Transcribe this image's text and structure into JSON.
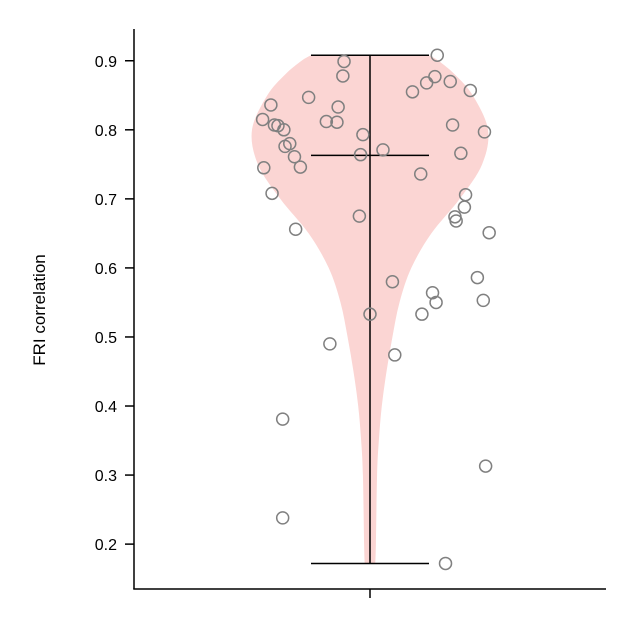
{
  "chart_data": {
    "type": "violin",
    "title": "",
    "xlabel": "",
    "ylabel": "FRI correlation",
    "ylim": [
      0.135,
      0.946
    ],
    "yticks": [
      0.2,
      0.3,
      0.4,
      0.5,
      0.6,
      0.7,
      0.8,
      0.9
    ],
    "ytick_labels": [
      "0.2",
      "0.3",
      "0.4",
      "0.5",
      "0.6",
      "0.7",
      "0.8",
      "0.9"
    ],
    "grid": false,
    "violin_color": "#fbd5d3",
    "point_color": "#808080",
    "line_color": "#000000",
    "stats": {
      "min": 0.172,
      "median": 0.763,
      "max": 0.908
    },
    "density": [
      {
        "y": 0.172,
        "w": 0.045
      },
      {
        "y": 0.2,
        "w": 0.05
      },
      {
        "y": 0.3,
        "w": 0.06
      },
      {
        "y": 0.35,
        "w": 0.075
      },
      {
        "y": 0.4,
        "w": 0.1
      },
      {
        "y": 0.45,
        "w": 0.14
      },
      {
        "y": 0.5,
        "w": 0.19
      },
      {
        "y": 0.55,
        "w": 0.25
      },
      {
        "y": 0.6,
        "w": 0.35
      },
      {
        "y": 0.65,
        "w": 0.52
      },
      {
        "y": 0.7,
        "w": 0.76
      },
      {
        "y": 0.75,
        "w": 0.95
      },
      {
        "y": 0.8,
        "w": 1.0
      },
      {
        "y": 0.85,
        "w": 0.87
      },
      {
        "y": 0.88,
        "w": 0.72
      },
      {
        "y": 0.9,
        "w": 0.58
      },
      {
        "y": 0.908,
        "w": 0.5
      }
    ],
    "points": [
      {
        "x": 0.57,
        "y": 0.908
      },
      {
        "x": -0.22,
        "y": 0.899
      },
      {
        "x": 0.55,
        "y": 0.877
      },
      {
        "x": 0.68,
        "y": 0.87
      },
      {
        "x": 0.48,
        "y": 0.868
      },
      {
        "x": -0.23,
        "y": 0.878
      },
      {
        "x": 0.85,
        "y": 0.857
      },
      {
        "x": 0.36,
        "y": 0.855
      },
      {
        "x": -0.52,
        "y": 0.847
      },
      {
        "x": -0.27,
        "y": 0.833
      },
      {
        "x": -0.84,
        "y": 0.836
      },
      {
        "x": -0.37,
        "y": 0.812
      },
      {
        "x": -0.28,
        "y": 0.811
      },
      {
        "x": -0.91,
        "y": 0.815
      },
      {
        "x": -0.81,
        "y": 0.807
      },
      {
        "x": -0.78,
        "y": 0.806
      },
      {
        "x": 0.7,
        "y": 0.807
      },
      {
        "x": 0.97,
        "y": 0.797
      },
      {
        "x": -0.73,
        "y": 0.8
      },
      {
        "x": -0.06,
        "y": 0.793
      },
      {
        "x": -0.68,
        "y": 0.78
      },
      {
        "x": -0.72,
        "y": 0.776
      },
      {
        "x": 0.11,
        "y": 0.771
      },
      {
        "x": 0.77,
        "y": 0.766
      },
      {
        "x": -0.08,
        "y": 0.764
      },
      {
        "x": -0.64,
        "y": 0.761
      },
      {
        "x": -0.59,
        "y": 0.746
      },
      {
        "x": -0.9,
        "y": 0.745
      },
      {
        "x": 0.43,
        "y": 0.736
      },
      {
        "x": -0.83,
        "y": 0.708
      },
      {
        "x": 0.81,
        "y": 0.706
      },
      {
        "x": 0.8,
        "y": 0.688
      },
      {
        "x": 0.72,
        "y": 0.674
      },
      {
        "x": 0.73,
        "y": 0.668
      },
      {
        "x": -0.09,
        "y": 0.675
      },
      {
        "x": 1.01,
        "y": 0.651
      },
      {
        "x": -0.63,
        "y": 0.656
      },
      {
        "x": 0.91,
        "y": 0.586
      },
      {
        "x": 0.19,
        "y": 0.58
      },
      {
        "x": 0.53,
        "y": 0.564
      },
      {
        "x": 0.96,
        "y": 0.553
      },
      {
        "x": 0.56,
        "y": 0.55
      },
      {
        "x": 0.44,
        "y": 0.533
      },
      {
        "x": 0.0,
        "y": 0.533
      },
      {
        "x": -0.34,
        "y": 0.49
      },
      {
        "x": 0.21,
        "y": 0.474
      },
      {
        "x": -0.74,
        "y": 0.381
      },
      {
        "x": 0.98,
        "y": 0.313
      },
      {
        "x": -0.74,
        "y": 0.238
      },
      {
        "x": 0.64,
        "y": 0.172
      }
    ]
  }
}
